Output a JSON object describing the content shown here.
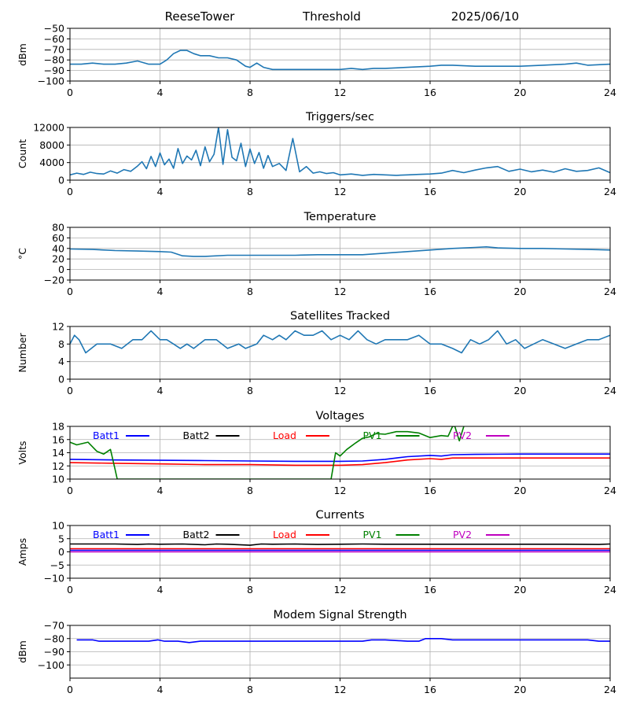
{
  "header": {
    "station": "ReeseTower",
    "mode": "Threshold",
    "date": "2025/06/10"
  },
  "chart_data": [
    {
      "id": "signal",
      "type": "line",
      "title": "",
      "xlabel": "",
      "ylabel": "dBm",
      "xlim": [
        0,
        24
      ],
      "ylim": [
        -100,
        -50
      ],
      "xticks": [
        0,
        4,
        8,
        12,
        16,
        20,
        24
      ],
      "yticks": [
        -100,
        -90,
        -80,
        -70,
        -60,
        -50
      ],
      "grid": true,
      "legend": null,
      "series": [
        {
          "color": "#1f77b4",
          "x": [
            0,
            0.5,
            1,
            1.5,
            2,
            2.5,
            3,
            3.5,
            4,
            4.3,
            4.6,
            4.9,
            5.2,
            5.5,
            5.8,
            6.2,
            6.6,
            7.0,
            7.4,
            7.8,
            8.0,
            8.3,
            8.6,
            9,
            10,
            11,
            12,
            12.5,
            13,
            13.5,
            14,
            15,
            16,
            16.5,
            17,
            18,
            19,
            20,
            21,
            22,
            22.5,
            23,
            24
          ],
          "y": [
            -84,
            -84,
            -83,
            -84,
            -84,
            -83,
            -81,
            -84,
            -84,
            -80,
            -74,
            -71,
            -71,
            -74,
            -76,
            -76,
            -78,
            -78,
            -80,
            -86,
            -87,
            -83,
            -87,
            -89,
            -89,
            -89,
            -89,
            -88,
            -89,
            -88,
            -88,
            -87,
            -86,
            -85,
            -85,
            -86,
            -86,
            -86,
            -85,
            -84,
            -83,
            -85,
            -84
          ]
        }
      ]
    },
    {
      "id": "triggers",
      "type": "line",
      "title": "Triggers/sec",
      "xlabel": "",
      "ylabel": "Count",
      "xlim": [
        0,
        24
      ],
      "ylim": [
        0,
        12000
      ],
      "xticks": [
        0,
        4,
        8,
        12,
        16,
        20,
        24
      ],
      "yticks": [
        0,
        4000,
        8000,
        12000
      ],
      "grid": true,
      "legend": null,
      "series": [
        {
          "color": "#1f77b4",
          "x": [
            0,
            0.3,
            0.6,
            0.9,
            1.2,
            1.5,
            1.8,
            2.1,
            2.4,
            2.7,
            3.0,
            3.2,
            3.4,
            3.6,
            3.8,
            4.0,
            4.2,
            4.4,
            4.6,
            4.8,
            5.0,
            5.2,
            5.4,
            5.6,
            5.8,
            6.0,
            6.2,
            6.4,
            6.6,
            6.8,
            7.0,
            7.2,
            7.4,
            7.6,
            7.8,
            8.0,
            8.2,
            8.4,
            8.6,
            8.8,
            9.0,
            9.3,
            9.6,
            9.9,
            10.2,
            10.5,
            10.8,
            11.1,
            11.4,
            11.7,
            12.0,
            12.5,
            13,
            13.5,
            14,
            14.5,
            15,
            15.5,
            16,
            16.5,
            17,
            17.5,
            18,
            18.5,
            19,
            19.5,
            20,
            20.5,
            21,
            21.5,
            22,
            22.5,
            23,
            23.5,
            24
          ],
          "y": [
            1200,
            1600,
            1300,
            1800,
            1500,
            1400,
            2100,
            1600,
            2400,
            2000,
            3200,
            4200,
            2600,
            5400,
            3100,
            6200,
            3500,
            4800,
            2700,
            7200,
            3800,
            5500,
            4600,
            6800,
            3300,
            7600,
            4200,
            5900,
            12000,
            3600,
            11500,
            5200,
            4400,
            8400,
            3100,
            7100,
            3800,
            6300,
            2700,
            5600,
            3100,
            3800,
            2200,
            9500,
            1900,
            3100,
            1600,
            1900,
            1500,
            1700,
            1200,
            1400,
            1100,
            1300,
            1200,
            1100,
            1200,
            1300,
            1400,
            1600,
            2200,
            1700,
            2300,
            2800,
            3100,
            2000,
            2500,
            1900,
            2300,
            1800,
            2600,
            2000,
            2200,
            2800,
            1700
          ]
        }
      ]
    },
    {
      "id": "temperature",
      "type": "line",
      "title": "Temperature",
      "xlabel": "",
      "ylabel": "°C",
      "xlim": [
        0,
        24
      ],
      "ylim": [
        -20,
        80
      ],
      "xticks": [
        0,
        4,
        8,
        12,
        16,
        20,
        24
      ],
      "yticks": [
        -20,
        0,
        20,
        40,
        60,
        80
      ],
      "grid": true,
      "legend": null,
      "series": [
        {
          "color": "#1f77b4",
          "x": [
            0,
            1,
            2,
            3,
            4,
            4.5,
            5,
            5.5,
            6,
            7,
            8,
            9,
            10,
            11,
            12,
            13,
            14,
            15,
            16,
            17,
            18,
            18.5,
            19,
            20,
            21,
            22,
            23,
            24
          ],
          "y": [
            39,
            38,
            36,
            35,
            34,
            33,
            26,
            25,
            25,
            27,
            27,
            27,
            27,
            28,
            28,
            28,
            31,
            34,
            37,
            40,
            42,
            43,
            41,
            40,
            40,
            39,
            38,
            37
          ]
        }
      ]
    },
    {
      "id": "satellites",
      "type": "line",
      "title": "Satellites Tracked",
      "xlabel": "",
      "ylabel": "Number",
      "xlim": [
        0,
        24
      ],
      "ylim": [
        0,
        12
      ],
      "xticks": [
        0,
        4,
        8,
        12,
        16,
        20,
        24
      ],
      "yticks": [
        0,
        4,
        8,
        12
      ],
      "grid": true,
      "legend": null,
      "series": [
        {
          "color": "#1f77b4",
          "x": [
            0,
            0.2,
            0.4,
            0.5,
            0.7,
            1.2,
            1.5,
            1.8,
            2.3,
            2.8,
            3.2,
            3.6,
            4.0,
            4.3,
            4.6,
            4.9,
            5.2,
            5.5,
            6.0,
            6.5,
            7.0,
            7.5,
            7.8,
            8.3,
            8.6,
            9.0,
            9.3,
            9.6,
            10.0,
            10.4,
            10.8,
            11.2,
            11.6,
            12.0,
            12.4,
            12.8,
            13.2,
            13.6,
            14.0,
            14.5,
            15.0,
            15.5,
            16.0,
            16.5,
            17.0,
            17.4,
            17.8,
            18.2,
            18.6,
            19.0,
            19.4,
            19.8,
            20.2,
            20.6,
            21.0,
            21.5,
            22.0,
            22.5,
            23.0,
            23.5,
            24
          ],
          "y": [
            8,
            10,
            9,
            8,
            6,
            8,
            8,
            8,
            7,
            9,
            9,
            11,
            9,
            9,
            8,
            7,
            8,
            7,
            9,
            9,
            7,
            8,
            7,
            8,
            10,
            9,
            10,
            9,
            11,
            10,
            10,
            11,
            9,
            10,
            9,
            11,
            9,
            8,
            9,
            9,
            9,
            10,
            8,
            8,
            7,
            6,
            9,
            8,
            9,
            11,
            8,
            9,
            7,
            8,
            9,
            8,
            7,
            8,
            9,
            9,
            10
          ]
        }
      ]
    },
    {
      "id": "voltages",
      "type": "line",
      "title": "Voltages",
      "xlabel": "",
      "ylabel": "Volts",
      "xlim": [
        0,
        24
      ],
      "ylim": [
        10,
        18
      ],
      "xticks": [
        0,
        4,
        8,
        12,
        16,
        20,
        24
      ],
      "yticks": [
        10,
        12,
        14,
        16,
        18
      ],
      "grid": true,
      "legend": {
        "placement": "top",
        "items": [
          {
            "label": "Batt1",
            "color": "#0000ff"
          },
          {
            "label": "Batt2",
            "color": "#000000"
          },
          {
            "label": "Load",
            "color": "#ff0000"
          },
          {
            "label": "PV1",
            "color": "#008000"
          },
          {
            "label": "PV2",
            "color": "#bf00bf"
          }
        ]
      },
      "series": [
        {
          "name": "Batt1",
          "color": "#0000ff",
          "x": [
            0,
            2,
            4,
            6,
            8,
            10,
            12,
            13,
            14,
            15,
            16,
            16.5,
            17,
            18,
            20,
            22,
            24
          ],
          "y": [
            13.0,
            12.9,
            12.85,
            12.8,
            12.75,
            12.7,
            12.7,
            12.75,
            13.0,
            13.4,
            13.6,
            13.5,
            13.7,
            13.75,
            13.8,
            13.8,
            13.8
          ]
        },
        {
          "name": "Batt2",
          "color": "#000000",
          "x": [],
          "y": []
        },
        {
          "name": "Load",
          "color": "#ff0000",
          "x": [
            0,
            2,
            4,
            6,
            8,
            10,
            12,
            13,
            14,
            15,
            16,
            16.5,
            17,
            18,
            20,
            22,
            24
          ],
          "y": [
            12.5,
            12.4,
            12.3,
            12.2,
            12.2,
            12.1,
            12.1,
            12.2,
            12.5,
            12.9,
            13.1,
            13.0,
            13.2,
            13.2,
            13.2,
            13.2,
            13.2
          ]
        },
        {
          "name": "PV1",
          "color": "#008000",
          "x": [
            0,
            0.3,
            0.8,
            1.2,
            1.5,
            1.8,
            2.0,
            2.1,
            11.6,
            11.8,
            12.0,
            12.3,
            12.7,
            13.0,
            13.3,
            13.6,
            14.0,
            14.5,
            15.0,
            15.5,
            16.0,
            16.5,
            16.8,
            17.0,
            17.1,
            17.3,
            17.5
          ],
          "y": [
            15.6,
            15.2,
            15.6,
            14.2,
            13.8,
            14.5,
            11.5,
            10.0,
            10.0,
            14.0,
            13.5,
            14.5,
            15.5,
            16.2,
            16.4,
            16.9,
            16.8,
            17.2,
            17.2,
            17.0,
            16.3,
            16.6,
            16.5,
            18.0,
            18.0,
            15.8,
            18.0
          ]
        },
        {
          "name": "PV2",
          "color": "#bf00bf",
          "x": [],
          "y": []
        }
      ]
    },
    {
      "id": "currents",
      "type": "line",
      "title": "Currents",
      "xlabel": "",
      "ylabel": "Amps",
      "xlim": [
        0,
        24
      ],
      "ylim": [
        -10,
        10
      ],
      "xticks": [
        0,
        4,
        8,
        12,
        16,
        20,
        24
      ],
      "yticks": [
        -10,
        -5,
        0,
        5,
        10
      ],
      "grid": true,
      "legend": {
        "placement": "top",
        "items": [
          {
            "label": "Batt1",
            "color": "#0000ff"
          },
          {
            "label": "Batt2",
            "color": "#000000"
          },
          {
            "label": "Load",
            "color": "#ff0000"
          },
          {
            "label": "PV1",
            "color": "#008000"
          },
          {
            "label": "PV2",
            "color": "#bf00bf"
          }
        ]
      },
      "series": [
        {
          "name": "Batt2",
          "color": "#000000",
          "x": [
            0,
            1,
            2,
            3,
            3.5,
            4,
            5,
            6,
            6.5,
            7,
            8,
            8.5,
            9,
            10,
            11,
            12,
            13,
            14,
            16,
            18,
            20,
            22,
            23.5,
            24
          ],
          "y": [
            3.0,
            3.0,
            3.0,
            2.8,
            3.0,
            2.9,
            3.0,
            2.7,
            3.0,
            2.9,
            2.5,
            3.0,
            2.9,
            3.0,
            2.8,
            2.9,
            3.0,
            2.9,
            2.9,
            2.9,
            2.9,
            2.9,
            2.8,
            3.0
          ]
        },
        {
          "name": "Load",
          "color": "#ff0000",
          "x": [
            0,
            24
          ],
          "y": [
            1.2,
            1.2
          ]
        },
        {
          "name": "Batt1",
          "color": "#0000ff",
          "x": [
            0,
            24
          ],
          "y": [
            0.6,
            0.6
          ]
        },
        {
          "name": "PV2",
          "color": "#bf00bf",
          "x": [
            0,
            24
          ],
          "y": [
            0.0,
            0.0
          ]
        }
      ]
    },
    {
      "id": "modem",
      "type": "line",
      "title": "Modem Signal Strength",
      "xlabel": "",
      "ylabel": "dBm",
      "xlim": [
        0,
        24
      ],
      "ylim": [
        -110,
        -70
      ],
      "xticks": [
        0,
        4,
        8,
        12,
        16,
        20,
        24
      ],
      "yticks": [
        -100,
        -90,
        -80,
        -70
      ],
      "grid": true,
      "legend": null,
      "series": [
        {
          "color": "#0000ff",
          "x": [
            0.3,
            1.0,
            1.3,
            2.0,
            3.0,
            3.5,
            3.9,
            4.2,
            4.8,
            5.3,
            5.8,
            6.5,
            8,
            10,
            12,
            13,
            13.4,
            14,
            15,
            15.5,
            15.8,
            16.2,
            16.5,
            17,
            18,
            20,
            22,
            23,
            23.5,
            24
          ],
          "y": [
            -81,
            -81,
            -82,
            -82,
            -82,
            -82,
            -81,
            -82,
            -82,
            -83,
            -82,
            -82,
            -82,
            -82,
            -82,
            -82,
            -81,
            -81,
            -82,
            -82,
            -80,
            -80,
            -80,
            -81,
            -81,
            -81,
            -81,
            -81,
            -82,
            -82
          ]
        }
      ]
    }
  ]
}
